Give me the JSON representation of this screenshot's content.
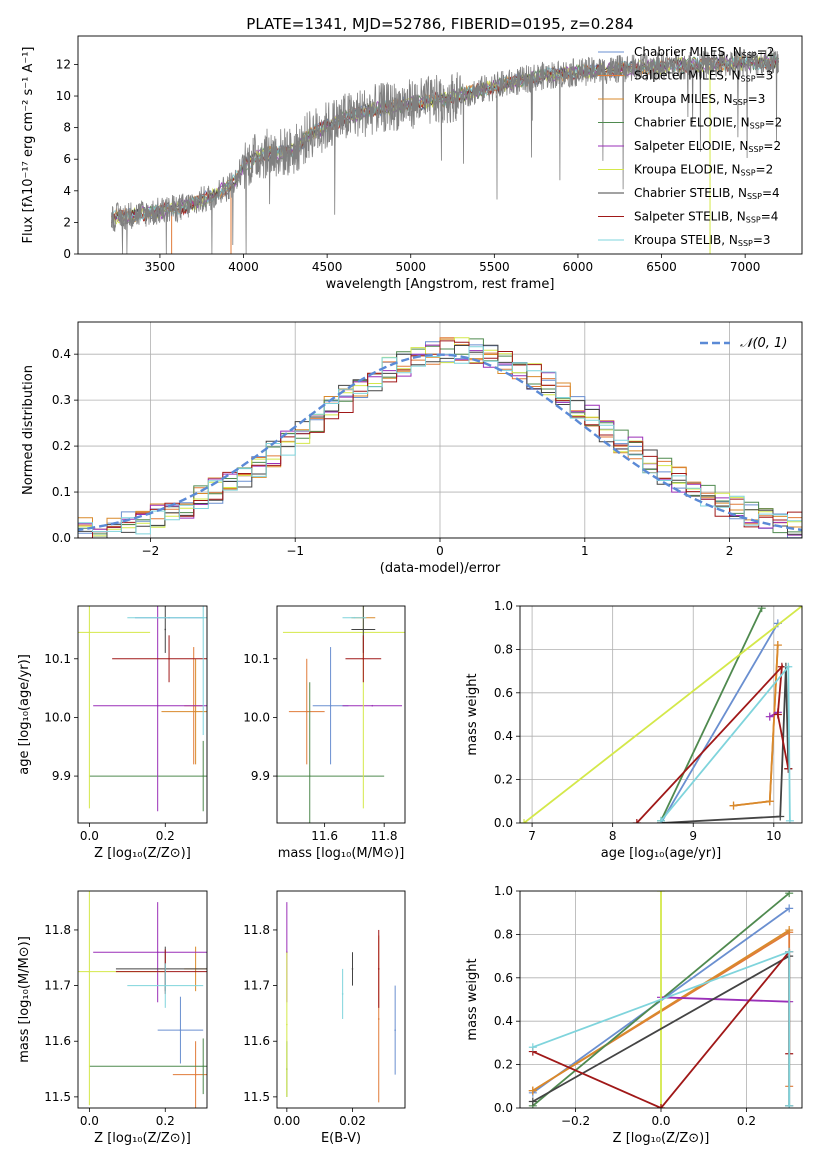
{
  "figure_title": "PLATE=1341, MJD=52786, FIBERID=0195, z=0.284",
  "legend_items": [
    {
      "label": "Chabrier MILES, N",
      "sub": "SSP",
      "tail": "=2",
      "color": "#6a8fd0"
    },
    {
      "label": "Salpeter MILES, N",
      "sub": "SSP",
      "tail": "=3",
      "color": "#e07b39"
    },
    {
      "label": "Kroupa MILES, N",
      "sub": "SSP",
      "tail": "=3",
      "color": "#d98a2b"
    },
    {
      "label": "Chabrier ELODIE, N",
      "sub": "SSP",
      "tail": "=2",
      "color": "#4f8a4f"
    },
    {
      "label": "Salpeter ELODIE, N",
      "sub": "SSP",
      "tail": "=2",
      "color": "#9a2fb8"
    },
    {
      "label": "Kroupa ELODIE, N",
      "sub": "SSP",
      "tail": "=2",
      "color": "#d4e84a"
    },
    {
      "label": "Chabrier STELIB, N",
      "sub": "SSP",
      "tail": "=4",
      "color": "#444444"
    },
    {
      "label": "Salpeter STELIB, N",
      "sub": "SSP",
      "tail": "=4",
      "color": "#a01818"
    },
    {
      "label": "Kroupa STELIB, N",
      "sub": "SSP",
      "tail": "=3",
      "color": "#7fd4dc"
    }
  ],
  "chart_data": [
    {
      "type": "line",
      "title": "PLATE=1341, MJD=52786, FIBERID=0195, z=0.284",
      "xlabel": "wavelength [Angstrom, rest frame]",
      "ylabel": "Flux [fλ10⁻¹⁷ erg cm⁻² s⁻¹ A⁻¹]",
      "xlim": [
        3010,
        7340
      ],
      "ylim": [
        0,
        13.8
      ],
      "xticks": [
        3500,
        4000,
        4500,
        5000,
        5500,
        6000,
        6500,
        7000
      ],
      "yticks": [
        0,
        2,
        4,
        6,
        8,
        10,
        12
      ],
      "spectrum_range": [
        3210,
        7200
      ],
      "continuum_knots": [
        [
          3210,
          2.3
        ],
        [
          3500,
          2.7
        ],
        [
          3650,
          3.0
        ],
        [
          3800,
          3.6
        ],
        [
          3900,
          4.2
        ],
        [
          3950,
          4.6
        ],
        [
          4000,
          5.6
        ],
        [
          4100,
          6.3
        ],
        [
          4300,
          6.5
        ],
        [
          4400,
          7.6
        ],
        [
          4600,
          8.6
        ],
        [
          4800,
          9.2
        ],
        [
          5000,
          9.5
        ],
        [
          5200,
          9.8
        ],
        [
          5500,
          10.6
        ],
        [
          5800,
          11.3
        ],
        [
          6000,
          11.5
        ],
        [
          6500,
          11.9
        ],
        [
          7000,
          12.1
        ],
        [
          7200,
          12.2
        ]
      ],
      "data_color": "#808080",
      "model_spike_x": [
        3570,
        3925,
        6790
      ]
    },
    {
      "type": "histogram",
      "xlabel": "(data-model)/error",
      "ylabel": "Normed distribution",
      "xlim": [
        -2.5,
        2.5
      ],
      "ylim": [
        0,
        0.47
      ],
      "xticks": [
        -2,
        -1,
        0,
        1,
        2
      ],
      "yticks": [
        0.0,
        0.1,
        0.2,
        0.3,
        0.4
      ],
      "bin_width": 0.1,
      "reference_label": "𝒩(0, 1)",
      "reference_color": "#5b8ad6",
      "grid": true
    },
    {
      "type": "scatter",
      "xlabel": "Z [log₁₀(Z/Z⊙)]",
      "ylabel": "age  [log₁₀(age/yr)]",
      "xlim": [
        -0.03,
        0.31
      ],
      "ylim": [
        9.82,
        10.19
      ],
      "xticks": [
        0.0,
        0.2
      ],
      "yticks": [
        9.9,
        10.0,
        10.1
      ],
      "points": [
        {
          "x": 0.21,
          "y": 10.17,
          "xerr": 0.09,
          "yerr": 0.0,
          "color": "#6a8fd0"
        },
        {
          "x": 0.275,
          "y": 10.02,
          "xerr": 0.025,
          "yerr": 0.1,
          "color": "#e07b39"
        },
        {
          "x": 0.28,
          "y": 10.01,
          "xerr": 0.09,
          "yerr": 0.09,
          "color": "#d98a2b"
        },
        {
          "x": 0.3,
          "y": 9.9,
          "xerr": 0.3,
          "yerr": 0.06,
          "color": "#4f8a4f"
        },
        {
          "x": 0.18,
          "y": 10.02,
          "xerr": 0.17,
          "yerr": 0.18,
          "color": "#9a2fb8"
        },
        {
          "x": 0.0,
          "y": 10.145,
          "xerr": 0.16,
          "yerr": 0.3,
          "color": "#d4e84a"
        },
        {
          "x": 0.2,
          "y": 10.15,
          "xerr": 0.0,
          "yerr": 0.04,
          "color": "#444444"
        },
        {
          "x": 0.21,
          "y": 10.1,
          "xerr": 0.15,
          "yerr": 0.04,
          "color": "#a01818"
        },
        {
          "x": 0.3,
          "y": 10.17,
          "xerr": 0.2,
          "yerr": 0.2,
          "color": "#7fd4dc"
        }
      ]
    },
    {
      "type": "scatter",
      "xlabel": "mass [log₁₀(M/M⊙)]",
      "ylabel": "",
      "xlim": [
        11.44,
        11.87
      ],
      "ylim": [
        9.82,
        10.19
      ],
      "xticks": [
        11.6,
        11.8
      ],
      "yticks": [
        9.9,
        10.0,
        10.1
      ],
      "points": [
        {
          "x": 11.62,
          "y": 10.02,
          "xerr": 0.06,
          "yerr": 0.1,
          "color": "#6a8fd0"
        },
        {
          "x": 11.54,
          "y": 10.01,
          "xerr": 0.06,
          "yerr": 0.09,
          "color": "#e07b39"
        },
        {
          "x": 11.73,
          "y": 10.17,
          "xerr": 0.04,
          "yerr": 0.0,
          "color": "#d98a2b"
        },
        {
          "x": 11.55,
          "y": 9.9,
          "xerr": 0.25,
          "yerr": 0.16,
          "color": "#4f8a4f"
        },
        {
          "x": 11.76,
          "y": 10.02,
          "xerr": 0.1,
          "yerr": 0.0,
          "color": "#9a2fb8"
        },
        {
          "x": 11.73,
          "y": 10.145,
          "xerr": 0.27,
          "yerr": 0.3,
          "color": "#d4e84a"
        },
        {
          "x": 11.73,
          "y": 10.15,
          "xerr": 0.04,
          "yerr": 0.04,
          "color": "#444444"
        },
        {
          "x": 11.73,
          "y": 10.1,
          "xerr": 0.06,
          "yerr": 0.04,
          "color": "#a01818"
        },
        {
          "x": 11.7,
          "y": 10.17,
          "xerr": 0.04,
          "yerr": 0.0,
          "color": "#7fd4dc"
        }
      ]
    },
    {
      "type": "line",
      "xlabel": "age  [log₁₀(age/yr)]",
      "ylabel": "mass weight",
      "xlim": [
        6.85,
        10.35
      ],
      "ylim": [
        0,
        1
      ],
      "xticks": [
        7,
        8,
        9,
        10
      ],
      "yticks": [
        0.0,
        0.2,
        0.4,
        0.6,
        0.8,
        1.0
      ],
      "grid": true,
      "series": [
        {
          "color": "#6a8fd0",
          "x": [
            8.6,
            10.05
          ],
          "y": [
            0.0,
            0.92
          ]
        },
        {
          "color": "#e07b39",
          "x": [
            9.5,
            9.95,
            10.05
          ],
          "y": [
            0.08,
            0.1,
            0.82
          ]
        },
        {
          "color": "#d98a2b",
          "x": [
            9.5,
            9.95,
            10.05
          ],
          "y": [
            0.08,
            0.1,
            0.82
          ]
        },
        {
          "color": "#4f8a4f",
          "x": [
            8.6,
            9.85
          ],
          "y": [
            0.01,
            0.99
          ]
        },
        {
          "color": "#9a2fb8",
          "x": [
            9.95,
            10.05
          ],
          "y": [
            0.49,
            0.51
          ]
        },
        {
          "color": "#d4e84a",
          "x": [
            6.9,
            10.35
          ],
          "y": [
            0.0,
            1.0
          ]
        },
        {
          "color": "#444444",
          "x": [
            8.6,
            10.08,
            10.15,
            10.18
          ],
          "y": [
            0.0,
            0.03,
            0.72,
            0.25
          ]
        },
        {
          "color": "#a01818",
          "x": [
            8.3,
            10.1,
            10.05,
            10.18
          ],
          "y": [
            0.0,
            0.72,
            0.5,
            0.25
          ]
        },
        {
          "color": "#7fd4dc",
          "x": [
            8.6,
            10.18,
            10.2
          ],
          "y": [
            0.01,
            0.72,
            0.01
          ]
        }
      ]
    },
    {
      "type": "scatter",
      "xlabel": "Z [log₁₀(Z/Z⊙)]",
      "ylabel": "mass [log₁₀(M/M⊙)]",
      "xlim": [
        -0.03,
        0.31
      ],
      "ylim": [
        11.48,
        11.87
      ],
      "xticks": [
        0.0,
        0.2
      ],
      "yticks": [
        11.5,
        11.6,
        11.7,
        11.8
      ],
      "points": [
        {
          "x": 0.24,
          "y": 11.62,
          "xerr": 0.06,
          "yerr": 0.06,
          "color": "#6a8fd0"
        },
        {
          "x": 0.28,
          "y": 11.54,
          "xerr": 0.06,
          "yerr": 0.06,
          "color": "#e07b39"
        },
        {
          "x": 0.28,
          "y": 11.73,
          "xerr": 0.03,
          "yerr": 0.04,
          "color": "#d98a2b"
        },
        {
          "x": 0.3,
          "y": 11.555,
          "xerr": 0.3,
          "yerr": 0.05,
          "color": "#4f8a4f"
        },
        {
          "x": 0.18,
          "y": 11.76,
          "xerr": 0.17,
          "yerr": 0.09,
          "color": "#9a2fb8"
        },
        {
          "x": 0.0,
          "y": 11.725,
          "xerr": 0.2,
          "yerr": 0.24,
          "color": "#d4e84a"
        },
        {
          "x": 0.2,
          "y": 11.73,
          "xerr": 0.13,
          "yerr": 0.04,
          "color": "#444444"
        },
        {
          "x": 0.2,
          "y": 11.725,
          "xerr": 0.13,
          "yerr": 0.04,
          "color": "#a01818"
        },
        {
          "x": 0.2,
          "y": 11.7,
          "xerr": 0.1,
          "yerr": 0.04,
          "color": "#7fd4dc"
        }
      ]
    },
    {
      "type": "scatter",
      "xlabel": "E(B-V)",
      "ylabel": "",
      "xlim": [
        -0.003,
        0.036
      ],
      "ylim": [
        11.48,
        11.87
      ],
      "xticks": [
        0.0,
        0.02
      ],
      "yticks": [
        11.5,
        11.6,
        11.7,
        11.8
      ],
      "points": [
        {
          "x": 0.033,
          "y": 11.62,
          "xerr": 0,
          "yerr": 0.08,
          "color": "#6a8fd0"
        },
        {
          "x": 0.028,
          "y": 11.64,
          "xerr": 0,
          "yerr": 0.15,
          "color": "#e07b39"
        },
        {
          "x": 0.0,
          "y": 11.55,
          "xerr": 0,
          "yerr": 0.05,
          "color": "#4f8a4f"
        },
        {
          "x": 0.0,
          "y": 11.76,
          "xerr": 0,
          "yerr": 0.09,
          "color": "#9a2fb8"
        },
        {
          "x": 0.0,
          "y": 11.63,
          "xerr": 0,
          "yerr": 0.13,
          "color": "#d4e84a"
        },
        {
          "x": 0.02,
          "y": 11.73,
          "xerr": 0,
          "yerr": 0.03,
          "color": "#444444"
        },
        {
          "x": 0.028,
          "y": 11.73,
          "xerr": 0,
          "yerr": 0.07,
          "color": "#a01818"
        },
        {
          "x": 0.017,
          "y": 11.685,
          "xerr": 0,
          "yerr": 0.045,
          "color": "#7fd4dc"
        }
      ]
    },
    {
      "type": "line",
      "xlabel": "Z [log₁₀(Z/Z⊙)]",
      "ylabel": "mass weight",
      "xlim": [
        -0.33,
        0.33
      ],
      "ylim": [
        0,
        1
      ],
      "xticks": [
        -0.2,
        0.0,
        0.2
      ],
      "yticks": [
        0.0,
        0.2,
        0.4,
        0.6,
        0.8,
        1.0
      ],
      "grid": true,
      "series": [
        {
          "color": "#6a8fd0",
          "x": [
            -0.3,
            0.3
          ],
          "y": [
            0.07,
            0.92
          ]
        },
        {
          "color": "#e07b39",
          "x": [
            -0.3,
            0.3,
            0.3
          ],
          "y": [
            0.08,
            0.81,
            0.1
          ]
        },
        {
          "color": "#d98a2b",
          "x": [
            -0.3,
            0.3
          ],
          "y": [
            0.08,
            0.82
          ]
        },
        {
          "color": "#4f8a4f",
          "x": [
            -0.3,
            0.3
          ],
          "y": [
            0.01,
            0.99
          ]
        },
        {
          "color": "#9a2fb8",
          "x": [
            0.0,
            0.3
          ],
          "y": [
            0.51,
            0.49
          ]
        },
        {
          "color": "#d4e84a",
          "x": [
            0.0,
            0.0
          ],
          "y": [
            0.0,
            1.0
          ]
        },
        {
          "color": "#444444",
          "x": [
            -0.3,
            0.3,
            0.3
          ],
          "y": [
            0.03,
            0.7,
            0.01
          ]
        },
        {
          "color": "#a01818",
          "x": [
            -0.3,
            0.0,
            0.3,
            0.3
          ],
          "y": [
            0.26,
            0.0,
            0.72,
            0.25
          ]
        },
        {
          "color": "#7fd4dc",
          "x": [
            -0.3,
            0.3,
            0.3
          ],
          "y": [
            0.28,
            0.72,
            0.01
          ]
        }
      ]
    }
  ]
}
